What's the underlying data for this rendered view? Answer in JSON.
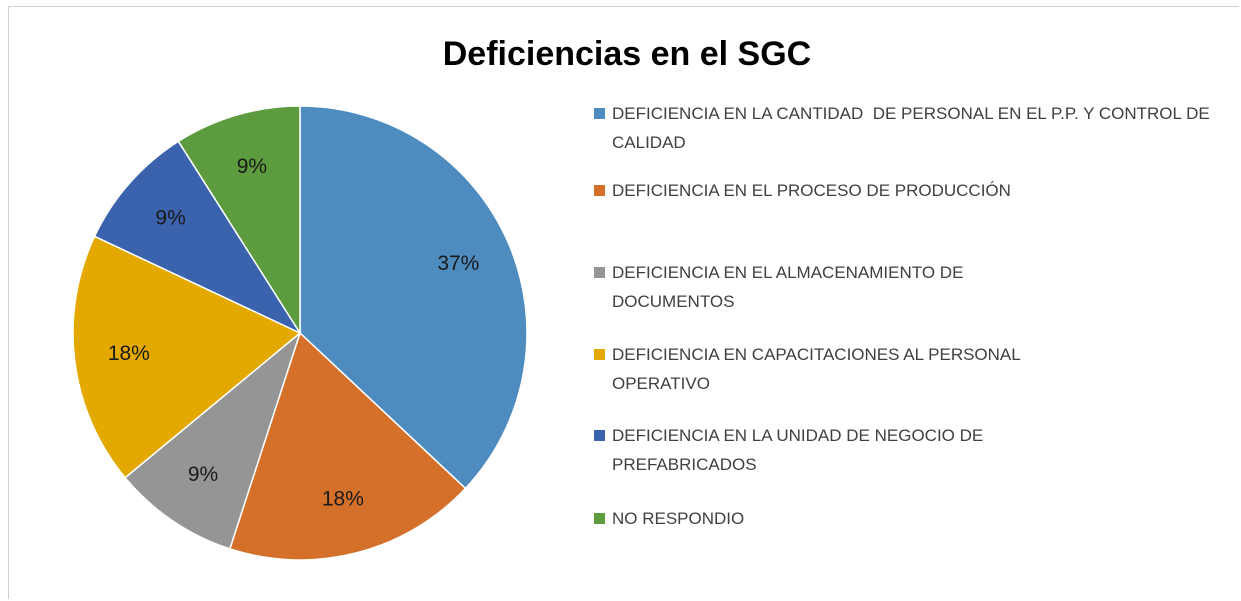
{
  "chart_data": {
    "type": "pie",
    "title": "Deficiencias en el SGC",
    "categories": [
      "DEFICIENCIA EN LA CANTIDAD  DE PERSONAL EN EL P.P. Y CONTROL DE CALIDAD",
      "DEFICIENCIA EN EL PROCESO DE PRODUCCIÓN",
      "DEFICIENCIA EN EL ALMACENAMIENTO DE DOCUMENTOS",
      "DEFICIENCIA EN CAPACITACIONES AL PERSONAL OPERATIVO",
      "DEFICIENCIA EN LA UNIDAD DE NEGOCIO DE PREFABRICADOS",
      "NO RESPONDIO"
    ],
    "values": [
      37,
      18,
      9,
      18,
      9,
      9
    ],
    "value_labels": [
      "37%",
      "18%",
      "9%",
      "18%",
      "9%",
      "9%"
    ],
    "colors": [
      "#4e8bbf",
      "#d4702a",
      "#959595",
      "#e3a900",
      "#3a62ad",
      "#5d9b3f"
    ],
    "legend": "right"
  }
}
